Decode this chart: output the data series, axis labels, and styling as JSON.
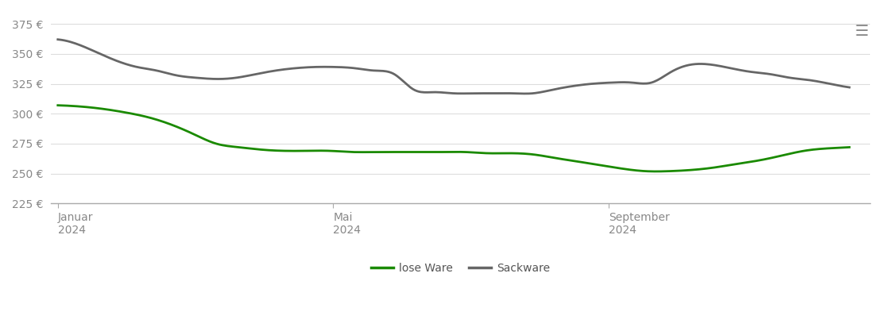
{
  "title": "",
  "ylabel": "",
  "xlabel": "",
  "ylim": [
    225,
    385
  ],
  "yticks": [
    225,
    250,
    275,
    300,
    325,
    350,
    375
  ],
  "ytick_labels": [
    "225 €",
    "250 €",
    "275 €",
    "300 €",
    "325 €",
    "350 €",
    "375 €"
  ],
  "xtick_positions": [
    0,
    4,
    8
  ],
  "xtick_labels": [
    "Januar\n2024",
    "Mai\n2024",
    "September\n2024"
  ],
  "background_color": "#ffffff",
  "grid_color": "#dddddd",
  "lose_ware_color": "#1a8a00",
  "sackware_color": "#666666",
  "legend_labels": [
    "lose Ware",
    "Sackware"
  ],
  "lose_ware": [
    307,
    306,
    304,
    301,
    297,
    291,
    283,
    275,
    272,
    270,
    269,
    269,
    269,
    268,
    268,
    268,
    268,
    268,
    268,
    267,
    267,
    266,
    263,
    260,
    257,
    254,
    252,
    252,
    253,
    255,
    258,
    261,
    265,
    269,
    271,
    272
  ],
  "sackware": [
    362,
    358,
    351,
    344,
    339,
    336,
    332,
    330,
    329,
    330,
    333,
    336,
    338,
    339,
    339,
    338,
    336,
    333,
    320,
    318,
    317,
    317,
    317,
    317,
    317,
    320,
    323,
    325,
    326,
    326,
    326,
    335,
    341,
    341,
    338,
    335,
    333,
    330,
    328,
    325,
    322
  ],
  "n_points_lose": 36,
  "n_points_sack": 41
}
